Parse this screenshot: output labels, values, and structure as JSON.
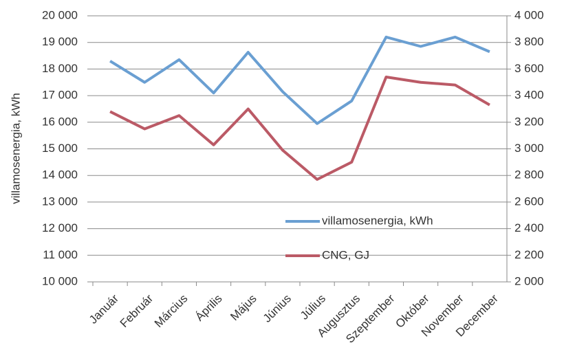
{
  "chart_data": {
    "type": "line",
    "ylabel": "villamosenergia, kWh",
    "categories": [
      "Január",
      "Február",
      "Március",
      "Április",
      "Május",
      "Június",
      "Július",
      "Augusztus",
      "Szeptember",
      "Október",
      "November",
      "December"
    ],
    "series": [
      {
        "name": "villamosenergia, kWh",
        "color": "#6a9fd2",
        "axis": "y",
        "values": [
          18300,
          17500,
          18350,
          17100,
          18630,
          17150,
          15950,
          16800,
          19200,
          18850,
          19200,
          18650
        ]
      },
      {
        "name": "CNG, GJ",
        "color": "#bb5a66",
        "axis": "y2",
        "values": [
          3280,
          3150,
          3250,
          3030,
          3300,
          2990,
          2770,
          2900,
          3540,
          3500,
          3480,
          3330
        ]
      }
    ],
    "ylim": [
      10000,
      20000
    ],
    "yticks": [
      {
        "value": 10000,
        "label": "10 000"
      },
      {
        "value": 11000,
        "label": "11 000"
      },
      {
        "value": 12000,
        "label": "12 000"
      },
      {
        "value": 13000,
        "label": "13 000"
      },
      {
        "value": 14000,
        "label": "14 000"
      },
      {
        "value": 15000,
        "label": "15 000"
      },
      {
        "value": 16000,
        "label": "16 000"
      },
      {
        "value": 17000,
        "label": "17 000"
      },
      {
        "value": 18000,
        "label": "18 000"
      },
      {
        "value": 19000,
        "label": "19 000"
      },
      {
        "value": 20000,
        "label": "20 000"
      }
    ],
    "y2lim": [
      2000,
      4000
    ],
    "y2ticks": [
      {
        "value": 2000,
        "label": "2 000"
      },
      {
        "value": 2200,
        "label": "2 200"
      },
      {
        "value": 2400,
        "label": "2 400"
      },
      {
        "value": 2600,
        "label": "2 600"
      },
      {
        "value": 2800,
        "label": "2 800"
      },
      {
        "value": 3000,
        "label": "3 000"
      },
      {
        "value": 3200,
        "label": "3 200"
      },
      {
        "value": 3400,
        "label": "3 400"
      },
      {
        "value": 3600,
        "label": "3 600"
      },
      {
        "value": 3800,
        "label": "3 800"
      },
      {
        "value": 4000,
        "label": "4 000"
      }
    ],
    "grid": true,
    "legend": "lower right"
  }
}
